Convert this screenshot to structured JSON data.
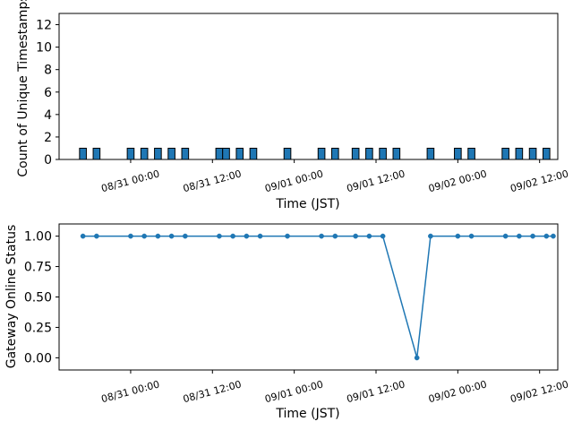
{
  "chart_data": [
    {
      "type": "bar",
      "xlabel": "Time (JST)",
      "ylabel": "Count of Unique Timestamps",
      "ylim": [
        0,
        13
      ],
      "yticks": [
        0,
        2,
        4,
        6,
        8,
        10,
        12
      ],
      "xlim": [
        "2024-08-30 13:30",
        "2024-09-02 14:40"
      ],
      "xticks": [
        {
          "t": "2024-08-31 00:00",
          "label": "08/31 00:00"
        },
        {
          "t": "2024-08-31 12:00",
          "label": "08/31 12:00"
        },
        {
          "t": "2024-09-01 00:00",
          "label": "09/01 00:00"
        },
        {
          "t": "2024-09-01 12:00",
          "label": "09/01 12:00"
        },
        {
          "t": "2024-09-02 00:00",
          "label": "09/02 00:00"
        },
        {
          "t": "2024-09-02 12:00",
          "label": "09/02 12:00"
        }
      ],
      "bar_width_hours": 1,
      "bar_color": "#1f77b4",
      "grid": false,
      "x": [
        "2024-08-30 17:00",
        "2024-08-30 19:00",
        "2024-08-31 00:00",
        "2024-08-31 02:00",
        "2024-08-31 04:00",
        "2024-08-31 06:00",
        "2024-08-31 08:00",
        "2024-08-31 13:00",
        "2024-08-31 14:00",
        "2024-08-31 16:00",
        "2024-08-31 18:00",
        "2024-08-31 23:00",
        "2024-09-01 04:00",
        "2024-09-01 06:00",
        "2024-09-01 09:00",
        "2024-09-01 11:00",
        "2024-09-01 13:00",
        "2024-09-01 15:00",
        "2024-09-01 20:00",
        "2024-09-02 00:00",
        "2024-09-02 02:00",
        "2024-09-02 07:00",
        "2024-09-02 09:00",
        "2024-09-02 11:00",
        "2024-09-02 13:00"
      ],
      "values": [
        1,
        1,
        1,
        1,
        1,
        1,
        1,
        1,
        1,
        1,
        1,
        1,
        1,
        1,
        1,
        1,
        1,
        1,
        1,
        1,
        1,
        1,
        1,
        1,
        1
      ]
    },
    {
      "type": "line",
      "xlabel": "Time (JST)",
      "ylabel": "Gateway Online Status",
      "ylim": [
        -0.1,
        1.1
      ],
      "yticks": [
        0.0,
        0.25,
        0.5,
        0.75,
        1.0
      ],
      "ytick_labels": [
        "0.00",
        "0.25",
        "0.50",
        "0.75",
        "1.00"
      ],
      "xlim": [
        "2024-08-30 13:30",
        "2024-09-02 14:40"
      ],
      "xticks": [
        {
          "t": "2024-08-31 00:00",
          "label": "08/31 00:00"
        },
        {
          "t": "2024-08-31 12:00",
          "label": "08/31 12:00"
        },
        {
          "t": "2024-09-01 00:00",
          "label": "09/01 00:00"
        },
        {
          "t": "2024-09-01 12:00",
          "label": "09/01 12:00"
        },
        {
          "t": "2024-09-02 00:00",
          "label": "09/02 00:00"
        },
        {
          "t": "2024-09-02 12:00",
          "label": "09/02 12:00"
        }
      ],
      "line_color": "#1f77b4",
      "grid": false,
      "x": [
        "2024-08-30 17:00",
        "2024-08-30 19:00",
        "2024-08-31 00:00",
        "2024-08-31 02:00",
        "2024-08-31 04:00",
        "2024-08-31 06:00",
        "2024-08-31 08:00",
        "2024-08-31 13:00",
        "2024-08-31 15:00",
        "2024-08-31 17:00",
        "2024-08-31 19:00",
        "2024-08-31 23:00",
        "2024-09-01 04:00",
        "2024-09-01 06:00",
        "2024-09-01 09:00",
        "2024-09-01 11:00",
        "2024-09-01 13:00",
        "2024-09-01 18:00",
        "2024-09-01 20:00",
        "2024-09-02 00:00",
        "2024-09-02 02:00",
        "2024-09-02 07:00",
        "2024-09-02 09:00",
        "2024-09-02 11:00",
        "2024-09-02 13:00",
        "2024-09-02 14:00"
      ],
      "values": [
        1,
        1,
        1,
        1,
        1,
        1,
        1,
        1,
        1,
        1,
        1,
        1,
        1,
        1,
        1,
        1,
        1,
        0,
        1,
        1,
        1,
        1,
        1,
        1,
        1,
        1
      ]
    }
  ]
}
